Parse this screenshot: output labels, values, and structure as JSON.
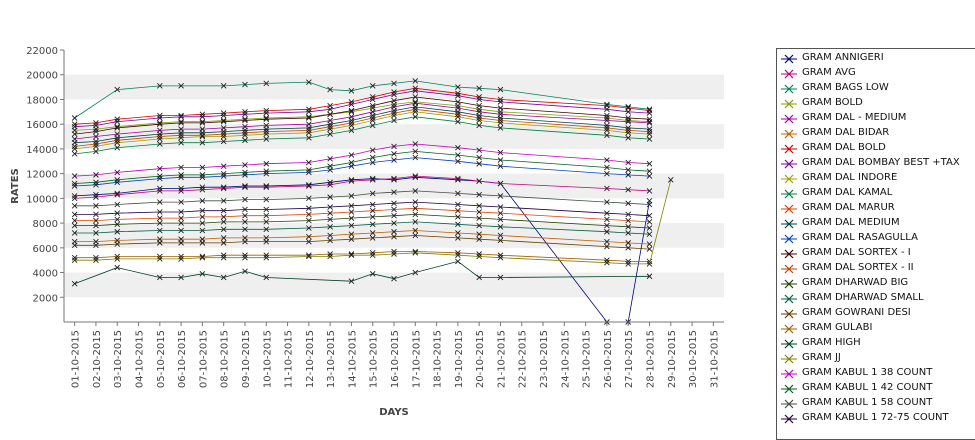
{
  "chart_data": {
    "type": "line",
    "title": "",
    "xlabel": "DAYS",
    "ylabel": "RATES",
    "ylim": [
      0,
      22000
    ],
    "yticks": [
      2000,
      4000,
      6000,
      8000,
      10000,
      12000,
      14000,
      16000,
      18000,
      20000,
      22000
    ],
    "grid": "alternating horizontal bands",
    "legend": "right",
    "categories": [
      "01-10-2015",
      "02-10-2015",
      "03-10-2015",
      "04-10-2015",
      "05-10-2015",
      "06-10-2015",
      "07-10-2015",
      "08-10-2015",
      "09-10-2015",
      "10-10-2015",
      "11-10-2015",
      "12-10-2015",
      "13-10-2015",
      "14-10-2015",
      "15-10-2015",
      "16-10-2015",
      "17-10-2015",
      "18-10-2015",
      "19-10-2015",
      "20-10-2015",
      "21-10-2015",
      "22-10-2015",
      "23-10-2015",
      "24-10-2015",
      "25-10-2015",
      "26-10-2015",
      "27-10-2015",
      "28-10-2015",
      "29-10-2015",
      "30-10-2015",
      "31-10-2015"
    ],
    "series": [
      {
        "name": "GRAM ANNIGERI",
        "color": "#000080",
        "values": [
          10200,
          10300,
          10400,
          null,
          10800,
          10800,
          10900,
          10900,
          11000,
          11000,
          null,
          11100,
          11300,
          11500,
          11600,
          11500,
          11700,
          null,
          11500,
          11400,
          11200,
          null,
          null,
          null,
          null,
          0,
          0,
          9800,
          null,
          null,
          null
        ]
      },
      {
        "name": "GRAM AVG",
        "color": "#c00080",
        "values": [
          10000,
          10100,
          10300,
          null,
          10600,
          10600,
          10700,
          10800,
          10900,
          10900,
          null,
          11000,
          11100,
          11400,
          11500,
          11600,
          11800,
          null,
          11600,
          11400,
          11200,
          null,
          null,
          null,
          null,
          10800,
          10700,
          10600,
          null,
          null,
          null
        ]
      },
      {
        "name": "GRAM BAGS LOW",
        "color": "#008060",
        "values": [
          16500,
          null,
          18800,
          null,
          19100,
          19100,
          null,
          19100,
          19200,
          19300,
          null,
          19400,
          18800,
          18700,
          19100,
          19300,
          19500,
          null,
          19000,
          18900,
          18800,
          null,
          null,
          null,
          null,
          17600,
          17400,
          17200,
          null,
          null,
          null
        ]
      },
      {
        "name": "GRAM BOLD",
        "color": "#80a000",
        "values": [
          15500,
          15600,
          15800,
          null,
          16100,
          16200,
          16200,
          16300,
          16400,
          16500,
          null,
          16600,
          16800,
          17000,
          17300,
          17600,
          17800,
          null,
          17500,
          17200,
          17000,
          null,
          null,
          null,
          null,
          16500,
          16300,
          16200,
          null,
          null,
          null
        ]
      },
      {
        "name": "GRAM DAL - MEDIUM",
        "color": "#a000a0",
        "values": [
          14800,
          15000,
          15200,
          null,
          15500,
          15600,
          15600,
          15700,
          15800,
          15900,
          null,
          16000,
          16300,
          16600,
          17000,
          17400,
          17700,
          null,
          17300,
          17000,
          16800,
          null,
          null,
          null,
          null,
          16300,
          16200,
          16100,
          null,
          null,
          null
        ]
      },
      {
        "name": "GRAM DAL BIDAR",
        "color": "#c06000",
        "values": [
          6500,
          6500,
          6600,
          null,
          6700,
          6700,
          6700,
          6800,
          6800,
          6800,
          null,
          6900,
          7000,
          7100,
          7200,
          7300,
          7400,
          null,
          7200,
          7100,
          7000,
          null,
          null,
          null,
          null,
          6500,
          6400,
          6300,
          null,
          null,
          null
        ]
      },
      {
        "name": "GRAM DAL BOLD",
        "color": "#d00000",
        "values": [
          16000,
          16100,
          16400,
          null,
          16700,
          16700,
          16800,
          16900,
          17000,
          17100,
          null,
          17200,
          17500,
          17800,
          18200,
          18600,
          18900,
          null,
          18500,
          18200,
          18000,
          null,
          null,
          null,
          null,
          17500,
          17300,
          17100,
          null,
          null,
          null
        ]
      },
      {
        "name": "GRAM DAL BOMBAY BEST +TAX",
        "color": "#8000a0",
        "values": [
          15800,
          15900,
          16200,
          null,
          16500,
          16600,
          16600,
          16700,
          16800,
          16900,
          null,
          17000,
          17200,
          17600,
          18000,
          18400,
          18700,
          null,
          18300,
          18000,
          17800,
          null,
          null,
          null,
          null,
          17200,
          17000,
          16900,
          null,
          null,
          null
        ]
      },
      {
        "name": "GRAM DAL INDORE",
        "color": "#a0a000",
        "values": [
          14000,
          14200,
          14500,
          null,
          14800,
          14900,
          15000,
          15000,
          15100,
          15200,
          null,
          15300,
          15600,
          15900,
          16300,
          16700,
          17000,
          null,
          16600,
          16300,
          16100,
          null,
          null,
          null,
          null,
          15500,
          15300,
          15200,
          null,
          null,
          null
        ]
      },
      {
        "name": "GRAM DAL KAMAL",
        "color": "#008040",
        "values": [
          13600,
          13800,
          14100,
          null,
          14400,
          14500,
          14500,
          14600,
          14700,
          14800,
          null,
          14900,
          15200,
          15500,
          15900,
          16300,
          16600,
          null,
          16200,
          15900,
          15700,
          null,
          null,
          null,
          null,
          15100,
          14900,
          14800,
          null,
          null,
          null
        ]
      },
      {
        "name": "GRAM DAL MARUR",
        "color": "#e04000",
        "values": [
          8200,
          8200,
          8300,
          null,
          8400,
          8400,
          8500,
          8500,
          8600,
          8600,
          null,
          8700,
          8800,
          8900,
          9000,
          9100,
          9200,
          null,
          9000,
          8900,
          8800,
          null,
          null,
          null,
          null,
          8300,
          8200,
          8100,
          null,
          null,
          null
        ]
      },
      {
        "name": "GRAM DAL MEDIUM",
        "color": "#004040",
        "values": [
          14500,
          14600,
          14900,
          null,
          15200,
          15300,
          15300,
          15400,
          15500,
          15600,
          null,
          15700,
          16000,
          16300,
          16700,
          17100,
          17400,
          null,
          17000,
          16700,
          16500,
          null,
          null,
          null,
          null,
          15900,
          15700,
          15600,
          null,
          null,
          null
        ]
      },
      {
        "name": "GRAM DAL RASAGULLA",
        "color": "#0040c0",
        "values": [
          11000,
          11100,
          11300,
          null,
          11600,
          11700,
          11700,
          11800,
          11900,
          12000,
          null,
          12100,
          12300,
          12600,
          12900,
          13100,
          13300,
          null,
          13000,
          12800,
          12600,
          null,
          null,
          null,
          null,
          12000,
          11900,
          11800,
          null,
          null,
          null
        ]
      },
      {
        "name": "GRAM DAL SORTEX - I",
        "color": "#400000",
        "values": [
          15200,
          15400,
          15700,
          null,
          16000,
          16100,
          16100,
          16200,
          16300,
          16400,
          null,
          16500,
          16800,
          17100,
          17500,
          17900,
          18200,
          null,
          17800,
          17500,
          17300,
          null,
          null,
          null,
          null,
          16700,
          16500,
          16400,
          null,
          null,
          null
        ]
      },
      {
        "name": "GRAM DAL SORTEX - II",
        "color": "#c04000",
        "values": [
          14200,
          14400,
          14700,
          null,
          15000,
          15100,
          15100,
          15200,
          15300,
          15400,
          null,
          15500,
          15800,
          16100,
          16500,
          16900,
          17200,
          null,
          16800,
          16500,
          16300,
          null,
          null,
          null,
          null,
          15700,
          15500,
          15400,
          null,
          null,
          null
        ]
      },
      {
        "name": "GRAM DHARWAD BIG",
        "color": "#204000",
        "values": [
          7800,
          7800,
          7900,
          null,
          8000,
          8000,
          8000,
          8100,
          8100,
          8100,
          null,
          8200,
          8300,
          8400,
          8500,
          8600,
          8700,
          null,
          8500,
          8400,
          8300,
          null,
          null,
          null,
          null,
          7800,
          7700,
          7600,
          null,
          null,
          null
        ]
      },
      {
        "name": "GRAM DHARWAD SMALL",
        "color": "#006040",
        "values": [
          7200,
          7200,
          7300,
          null,
          7400,
          7400,
          7400,
          7500,
          7500,
          7500,
          null,
          7600,
          7700,
          7800,
          7900,
          8000,
          8100,
          null,
          7900,
          7800,
          7700,
          null,
          null,
          null,
          null,
          7300,
          7200,
          7100,
          null,
          null,
          null
        ]
      },
      {
        "name": "GRAM GOWRANI DESI",
        "color": "#604000",
        "values": [
          6200,
          6200,
          6300,
          null,
          6400,
          6400,
          6400,
          6400,
          6500,
          6500,
          null,
          6500,
          6600,
          6700,
          6800,
          6900,
          7000,
          null,
          6800,
          6700,
          6600,
          null,
          null,
          null,
          null,
          6100,
          6000,
          5900,
          null,
          null,
          null
        ]
      },
      {
        "name": "GRAM GULABI",
        "color": "#a06000",
        "values": [
          5200,
          5200,
          5300,
          null,
          5300,
          5300,
          5300,
          5400,
          5400,
          5400,
          null,
          5400,
          5500,
          5500,
          5600,
          5700,
          5700,
          null,
          5600,
          5500,
          5400,
          null,
          null,
          null,
          null,
          5000,
          4900,
          4900,
          null,
          null,
          null
        ]
      },
      {
        "name": "GRAM HIGH",
        "color": "#004020",
        "values": [
          3100,
          null,
          4400,
          null,
          3600,
          3600,
          3900,
          3600,
          4100,
          3600,
          null,
          null,
          null,
          3300,
          3900,
          3500,
          4000,
          null,
          4900,
          3600,
          3600,
          null,
          null,
          null,
          null,
          null,
          null,
          3700,
          null,
          null,
          null
        ]
      },
      {
        "name": "GRAM JJ",
        "color": "#808000",
        "values": [
          5000,
          5000,
          5100,
          null,
          5100,
          5100,
          5200,
          5200,
          5200,
          5200,
          null,
          5300,
          5300,
          5400,
          5400,
          5500,
          5600,
          null,
          5400,
          5300,
          5200,
          null,
          null,
          null,
          null,
          4800,
          4700,
          4700,
          11500,
          null,
          null
        ]
      },
      {
        "name": "GRAM KABUL 1 38 COUNT",
        "color": "#c000c0",
        "values": [
          11800,
          11900,
          12100,
          null,
          12400,
          12500,
          12500,
          12600,
          12700,
          12800,
          null,
          12900,
          13200,
          13500,
          13900,
          14200,
          14400,
          null,
          14100,
          13900,
          13700,
          null,
          null,
          null,
          null,
          13100,
          12900,
          12800,
          null,
          null,
          null
        ]
      },
      {
        "name": "GRAM KABUL 1 42 COUNT",
        "color": "#006020",
        "values": [
          11200,
          11300,
          11500,
          null,
          11800,
          11900,
          11900,
          12000,
          12100,
          12200,
          null,
          12300,
          12600,
          12900,
          13300,
          13600,
          13800,
          null,
          13500,
          13300,
          13100,
          null,
          null,
          null,
          null,
          12500,
          12300,
          12200,
          null,
          null,
          null
        ]
      },
      {
        "name": "GRAM KABUL 1 58 COUNT",
        "color": "#405040",
        "values": [
          9400,
          9400,
          9500,
          null,
          9700,
          9700,
          9800,
          9800,
          9900,
          9900,
          null,
          10000,
          10100,
          10200,
          10400,
          10500,
          10600,
          null,
          10400,
          10300,
          10200,
          null,
          null,
          null,
          null,
          9700,
          9600,
          9500,
          null,
          null,
          null
        ]
      },
      {
        "name": "GRAM KABUL 1 72-75 COUNT",
        "color": "#200040",
        "values": [
          8700,
          8700,
          8800,
          null,
          8900,
          8900,
          9000,
          9000,
          9100,
          9100,
          null,
          9200,
          9300,
          9400,
          9500,
          9600,
          9700,
          null,
          9500,
          9400,
          9300,
          null,
          null,
          null,
          null,
          8800,
          8700,
          8600,
          null,
          null,
          null
        ]
      }
    ]
  }
}
